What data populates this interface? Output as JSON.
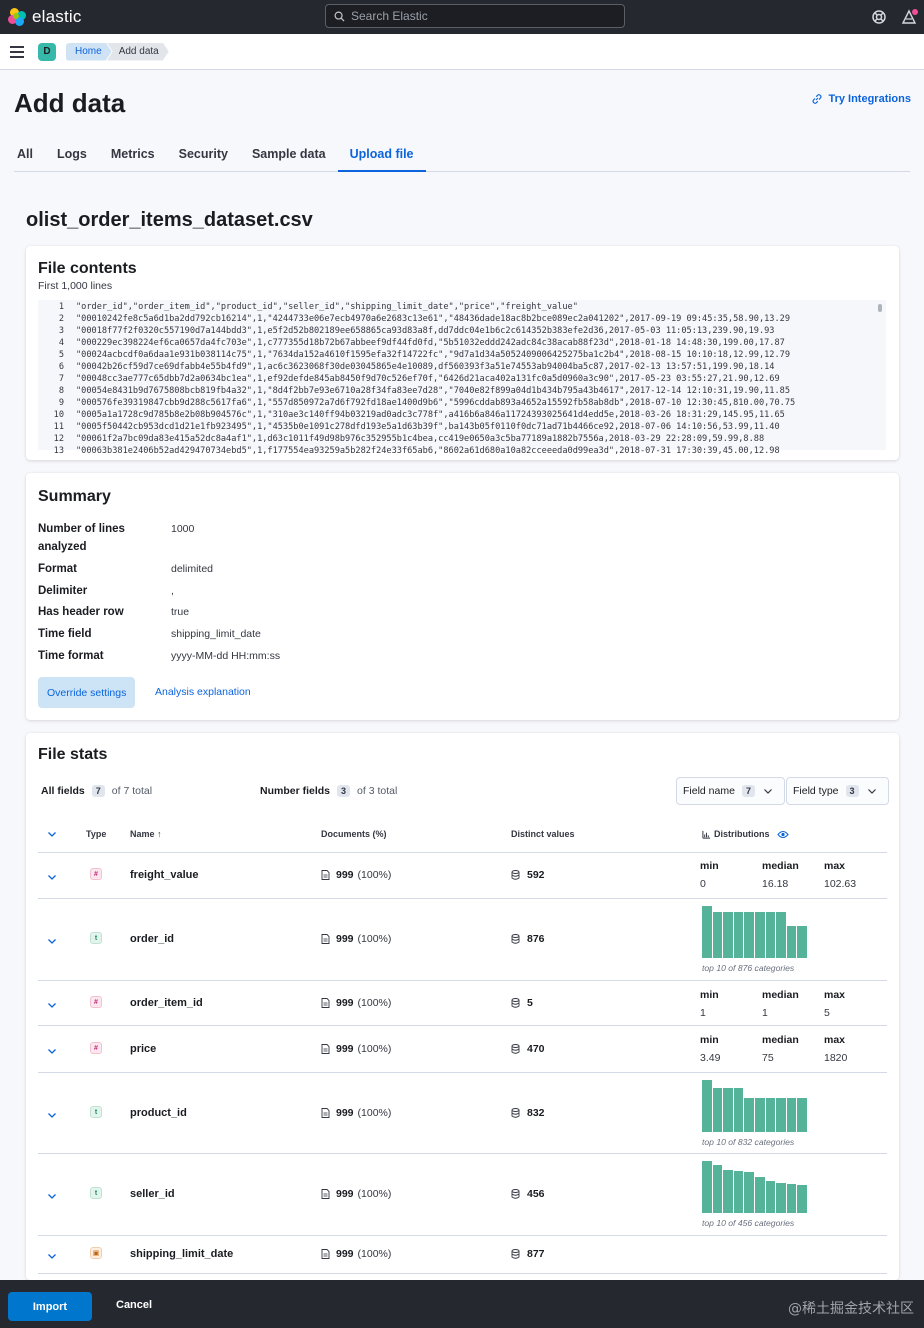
{
  "header": {
    "logo_text": "elastic",
    "search_placeholder": "Search Elastic",
    "icons": [
      "help-icon",
      "news-icon"
    ]
  },
  "nav": {
    "avatar_letter": "D",
    "breadcrumbs": [
      "Home",
      "Add data"
    ]
  },
  "page": {
    "title": "Add data",
    "try_integrations": "Try Integrations",
    "tabs": [
      "All",
      "Logs",
      "Metrics",
      "Security",
      "Sample data",
      "Upload file"
    ],
    "active_tab": "Upload file",
    "file_name": "olist_order_items_dataset.csv"
  },
  "file_contents": {
    "title": "File contents",
    "subtitle": "First 1,000 lines",
    "lines": [
      {
        "n": "1",
        "text": "\"order_id\",\"order_item_id\",\"product_id\",\"seller_id\",\"shipping_limit_date\",\"price\",\"freight_value\""
      },
      {
        "n": "2",
        "text": "\"00010242fe8c5a6d1ba2dd792cb16214\",1,\"4244733e06e7ecb4970a6e2683c13e61\",\"48436dade18ac8b2bce089ec2a041202\",2017-09-19 09:45:35,58.90,13.29"
      },
      {
        "n": "3",
        "text": "\"00018f77f2f0320c557190d7a144bdd3\",1,e5f2d52b802189ee658865ca93d83a8f,dd7ddc04e1b6c2c614352b383efe2d36,2017-05-03 11:05:13,239.90,19.93"
      },
      {
        "n": "4",
        "text": "\"000229ec398224ef6ca0657da4fc703e\",1,c777355d18b72b67abbeef9df44fd0fd,\"5b51032eddd242adc84c38acab88f23d\",2018-01-18 14:48:30,199.00,17.87"
      },
      {
        "n": "5",
        "text": "\"00024acbcdf0a6daa1e931b038114c75\",1,\"7634da152a4610f1595efa32f14722fc\",\"9d7a1d34a5052409006425275ba1c2b4\",2018-08-15 10:10:18,12.99,12.79"
      },
      {
        "n": "6",
        "text": "\"00042b26cf59d7ce69dfabb4e55b4fd9\",1,ac6c3623068f30de03045865e4e10089,df560393f3a51e74553ab94004ba5c87,2017-02-13 13:57:51,199.90,18.14"
      },
      {
        "n": "7",
        "text": "\"00048cc3ae777c65dbb7d2a0634bc1ea\",1,ef92defde845ab8450f9d70c526ef70f,\"6426d21aca402a131fc0a5d0960a3c90\",2017-05-23 03:55:27,21.90,12.69"
      },
      {
        "n": "8",
        "text": "\"00054e8431b9d7675808bcb819fb4a32\",1,\"8d4f2bb7e93e6710a28f34fa83ee7d28\",\"7040e82f899a04d1b434b795a43b4617\",2017-12-14 12:10:31,19.90,11.85"
      },
      {
        "n": "9",
        "text": "\"000576fe39319847cbb9d288c5617fa6\",1,\"557d850972a7d6f792fd18ae1400d9b6\",\"5996cddab893a4652a15592fb58ab8db\",2018-07-10 12:30:45,810.00,70.75"
      },
      {
        "n": "10",
        "text": "\"0005a1a1728c9d785b8e2b08b904576c\",1,\"310ae3c140ff94b03219ad0adc3c778f\",a416b6a846a11724393025641d4edd5e,2018-03-26 18:31:29,145.95,11.65"
      },
      {
        "n": "11",
        "text": "\"0005f50442cb953dcd1d21e1fb923495\",1,\"4535b0e1091c278dfd193e5a1d63b39f\",ba143b05f0110f0dc71ad71b4466ce92,2018-07-06 14:10:56,53.99,11.40"
      },
      {
        "n": "12",
        "text": "\"00061f2a7bc09da83e415a52dc8a4af1\",1,d63c1011f49d98b976c352955b1c4bea,cc419e0650a3c5ba77189a1882b7556a,2018-03-29 22:28:09,59.99,8.88"
      },
      {
        "n": "13",
        "text": "\"00063b381e2406b52ad429470734ebd5\",1,f177554ea93259a5b282f24e33f65ab6,\"8602a61d680a10a82cceeeda0d99ea3d\",2018-07-31 17:30:39,45.00,12.98"
      }
    ]
  },
  "summary": {
    "title": "Summary",
    "rows": [
      {
        "label": "Number of lines analyzed",
        "value": "1000"
      },
      {
        "label": "Format",
        "value": "delimited"
      },
      {
        "label": "Delimiter",
        "value": ","
      },
      {
        "label": "Has header row",
        "value": "true"
      },
      {
        "label": "Time field",
        "value": "shipping_limit_date"
      },
      {
        "label": "Time format",
        "value": "yyyy-MM-dd HH:mm:ss"
      }
    ],
    "override_label": "Override settings",
    "explain_label": "Analysis explanation"
  },
  "file_stats": {
    "title": "File stats",
    "all_fields_label": "All fields",
    "all_fields_count": "7",
    "all_fields_total": "of 7 total",
    "number_fields_label": "Number fields",
    "number_fields_count": "3",
    "number_fields_total": "of 3 total",
    "field_name_select": "Field name",
    "field_name_count": "7",
    "field_type_select": "Field type",
    "field_type_count": "3",
    "columns": {
      "type": "Type",
      "name": "Name",
      "documents": "Documents (%)",
      "distinct": "Distinct values",
      "distributions": "Distributions"
    },
    "rows": [
      {
        "name": "freight_value",
        "type": "number",
        "docs": "999",
        "pct": "(100%)",
        "distinct": "592",
        "stats": {
          "min": "0",
          "median": "16.18",
          "max": "102.63"
        }
      },
      {
        "name": "order_id",
        "type": "keyword",
        "docs": "999",
        "pct": "(100%)",
        "distinct": "876",
        "caption": "top 10 of 876 categories",
        "bars": [
          1.0,
          0.88,
          0.88,
          0.88,
          0.88,
          0.88,
          0.88,
          0.88,
          0.62,
          0.62
        ]
      },
      {
        "name": "order_item_id",
        "type": "number",
        "docs": "999",
        "pct": "(100%)",
        "distinct": "5",
        "stats": {
          "min": "1",
          "median": "1",
          "max": "5"
        }
      },
      {
        "name": "price",
        "type": "number",
        "docs": "999",
        "pct": "(100%)",
        "distinct": "470",
        "stats": {
          "min": "3.49",
          "median": "75",
          "max": "1820"
        }
      },
      {
        "name": "product_id",
        "type": "keyword",
        "docs": "999",
        "pct": "(100%)",
        "distinct": "832",
        "caption": "top 10 of 832 categories",
        "bars": [
          1.0,
          0.85,
          0.85,
          0.85,
          0.65,
          0.65,
          0.65,
          0.65,
          0.65,
          0.65
        ]
      },
      {
        "name": "seller_id",
        "type": "keyword",
        "docs": "999",
        "pct": "(100%)",
        "distinct": "456",
        "caption": "top 10 of 456 categories",
        "bars": [
          1.0,
          0.92,
          0.82,
          0.8,
          0.78,
          0.7,
          0.62,
          0.58,
          0.56,
          0.54
        ]
      },
      {
        "name": "shipping_limit_date",
        "type": "date",
        "docs": "999",
        "pct": "(100%)",
        "distinct": "877"
      }
    ],
    "stat_labels": {
      "min": "min",
      "median": "median",
      "max": "max"
    }
  },
  "bottom": {
    "import_label": "Import",
    "cancel_label": "Cancel",
    "watermark": "@稀土掘金技术社区"
  },
  "colors": {
    "accent": "#0b64dd",
    "bar": "#54b399",
    "header": "#25282f"
  }
}
